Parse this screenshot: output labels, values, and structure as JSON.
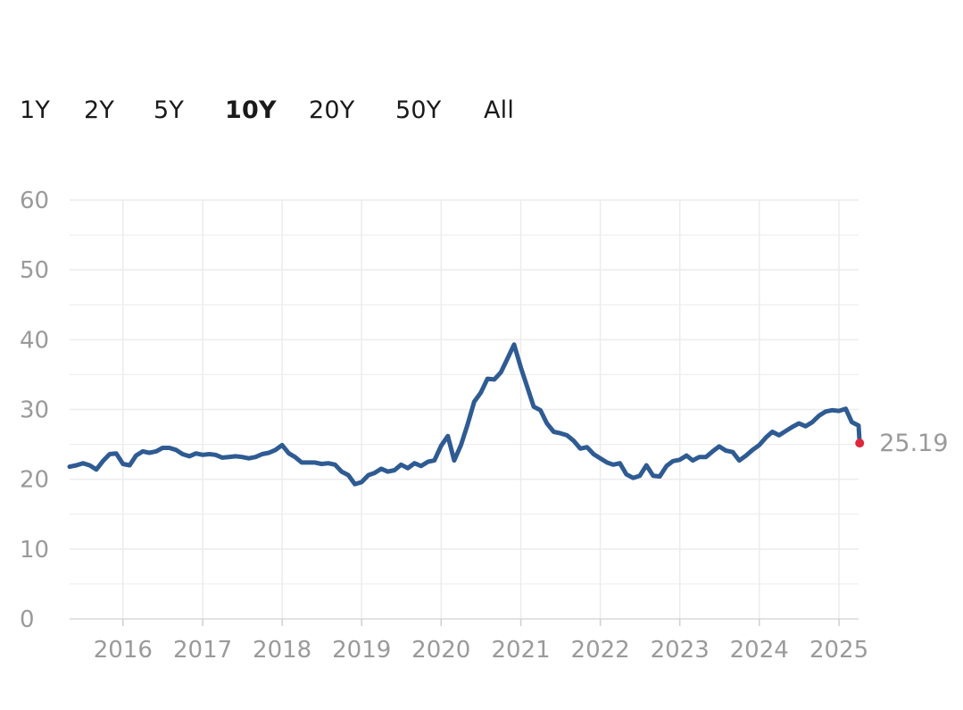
{
  "range_tabs": [
    {
      "label": "1Y",
      "active": false
    },
    {
      "label": "2Y",
      "active": false
    },
    {
      "label": "5Y",
      "active": false
    },
    {
      "label": "10Y",
      "active": true
    },
    {
      "label": "20Y",
      "active": false
    },
    {
      "label": "50Y",
      "active": false
    },
    {
      "label": "All",
      "active": false
    }
  ],
  "colors": {
    "line": "#2f5b93",
    "last_point": "#e0263a",
    "grid": "#ececec",
    "tick_text": "#9a9a9a"
  },
  "chart_data": {
    "type": "line",
    "title": "",
    "xlabel": "",
    "ylabel": "",
    "x_range": [
      "2015-05-01",
      "2025-04-01"
    ],
    "ylim": [
      0,
      60
    ],
    "y_ticks": [
      0,
      10,
      20,
      30,
      40,
      50,
      60
    ],
    "x_ticks": [
      "2016",
      "2017",
      "2018",
      "2019",
      "2020",
      "2021",
      "2022",
      "2023",
      "2024",
      "2025"
    ],
    "grid": true,
    "last_value_label": "25.19",
    "series": [
      {
        "points": [
          [
            "2015-05",
            21.8
          ],
          [
            "2015-06",
            22.0
          ],
          [
            "2015-07",
            22.3
          ],
          [
            "2015-08",
            22.0
          ],
          [
            "2015-09",
            21.4
          ],
          [
            "2015-10",
            22.6
          ],
          [
            "2015-11",
            23.6
          ],
          [
            "2015-12",
            23.7
          ],
          [
            "2016-01",
            22.2
          ],
          [
            "2016-02",
            22.0
          ],
          [
            "2016-03",
            23.4
          ],
          [
            "2016-04",
            24.0
          ],
          [
            "2016-05",
            23.8
          ],
          [
            "2016-06",
            24.0
          ],
          [
            "2016-07",
            24.5
          ],
          [
            "2016-08",
            24.5
          ],
          [
            "2016-09",
            24.2
          ],
          [
            "2016-10",
            23.6
          ],
          [
            "2016-11",
            23.3
          ],
          [
            "2016-12",
            23.7
          ],
          [
            "2017-01",
            23.5
          ],
          [
            "2017-02",
            23.6
          ],
          [
            "2017-03",
            23.5
          ],
          [
            "2017-04",
            23.1
          ],
          [
            "2017-05",
            23.2
          ],
          [
            "2017-06",
            23.3
          ],
          [
            "2017-07",
            23.2
          ],
          [
            "2017-08",
            23.0
          ],
          [
            "2017-09",
            23.2
          ],
          [
            "2017-10",
            23.6
          ],
          [
            "2017-11",
            23.8
          ],
          [
            "2017-12",
            24.2
          ],
          [
            "2018-01",
            24.9
          ],
          [
            "2018-02",
            23.7
          ],
          [
            "2018-03",
            23.2
          ],
          [
            "2018-04",
            22.4
          ],
          [
            "2018-05",
            22.4
          ],
          [
            "2018-06",
            22.4
          ],
          [
            "2018-07",
            22.2
          ],
          [
            "2018-08",
            22.3
          ],
          [
            "2018-09",
            22.1
          ],
          [
            "2018-10",
            21.1
          ],
          [
            "2018-11",
            20.6
          ],
          [
            "2018-12",
            19.3
          ],
          [
            "2019-01",
            19.6
          ],
          [
            "2019-02",
            20.6
          ],
          [
            "2019-03",
            20.9
          ],
          [
            "2019-04",
            21.5
          ],
          [
            "2019-05",
            21.1
          ],
          [
            "2019-06",
            21.3
          ],
          [
            "2019-07",
            22.1
          ],
          [
            "2019-08",
            21.6
          ],
          [
            "2019-09",
            22.3
          ],
          [
            "2019-10",
            21.9
          ],
          [
            "2019-11",
            22.5
          ],
          [
            "2019-12",
            22.7
          ],
          [
            "2020-01",
            24.8
          ],
          [
            "2020-02",
            26.2
          ],
          [
            "2020-03",
            22.7
          ],
          [
            "2020-04",
            24.9
          ],
          [
            "2020-05",
            27.8
          ],
          [
            "2020-06",
            31.1
          ],
          [
            "2020-07",
            32.4
          ],
          [
            "2020-08",
            34.4
          ],
          [
            "2020-09",
            34.3
          ],
          [
            "2020-10",
            35.3
          ],
          [
            "2020-11",
            37.3
          ],
          [
            "2020-12",
            39.3
          ],
          [
            "2021-01",
            36.0
          ],
          [
            "2021-02",
            33.1
          ],
          [
            "2021-03",
            30.4
          ],
          [
            "2021-04",
            29.9
          ],
          [
            "2021-05",
            28.0
          ],
          [
            "2021-06",
            26.8
          ],
          [
            "2021-07",
            26.6
          ],
          [
            "2021-08",
            26.3
          ],
          [
            "2021-09",
            25.5
          ],
          [
            "2021-10",
            24.4
          ],
          [
            "2021-11",
            24.6
          ],
          [
            "2021-12",
            23.6
          ],
          [
            "2022-01",
            23.0
          ],
          [
            "2022-02",
            22.4
          ],
          [
            "2022-03",
            22.1
          ],
          [
            "2022-04",
            22.3
          ],
          [
            "2022-05",
            20.7
          ],
          [
            "2022-06",
            20.2
          ],
          [
            "2022-07",
            20.5
          ],
          [
            "2022-08",
            22.0
          ],
          [
            "2022-09",
            20.5
          ],
          [
            "2022-10",
            20.4
          ],
          [
            "2022-11",
            21.9
          ],
          [
            "2022-12",
            22.6
          ],
          [
            "2023-01",
            22.8
          ],
          [
            "2023-02",
            23.4
          ],
          [
            "2023-03",
            22.7
          ],
          [
            "2023-04",
            23.2
          ],
          [
            "2023-05",
            23.2
          ],
          [
            "2023-06",
            24.0
          ],
          [
            "2023-07",
            24.7
          ],
          [
            "2023-08",
            24.1
          ],
          [
            "2023-09",
            23.9
          ],
          [
            "2023-10",
            22.7
          ],
          [
            "2023-11",
            23.4
          ],
          [
            "2023-12",
            24.2
          ],
          [
            "2024-01",
            24.9
          ],
          [
            "2024-02",
            26.0
          ],
          [
            "2024-03",
            26.8
          ],
          [
            "2024-04",
            26.3
          ],
          [
            "2024-05",
            26.9
          ],
          [
            "2024-06",
            27.5
          ],
          [
            "2024-07",
            28.0
          ],
          [
            "2024-08",
            27.6
          ],
          [
            "2024-09",
            28.2
          ],
          [
            "2024-10",
            29.1
          ],
          [
            "2024-11",
            29.7
          ],
          [
            "2024-12",
            29.9
          ],
          [
            "2025-01",
            29.8
          ],
          [
            "2025-02",
            30.1
          ],
          [
            "2025-03",
            28.2
          ],
          [
            "2025-04",
            27.7
          ],
          [
            "2025-04-06",
            25.19
          ]
        ]
      }
    ]
  }
}
